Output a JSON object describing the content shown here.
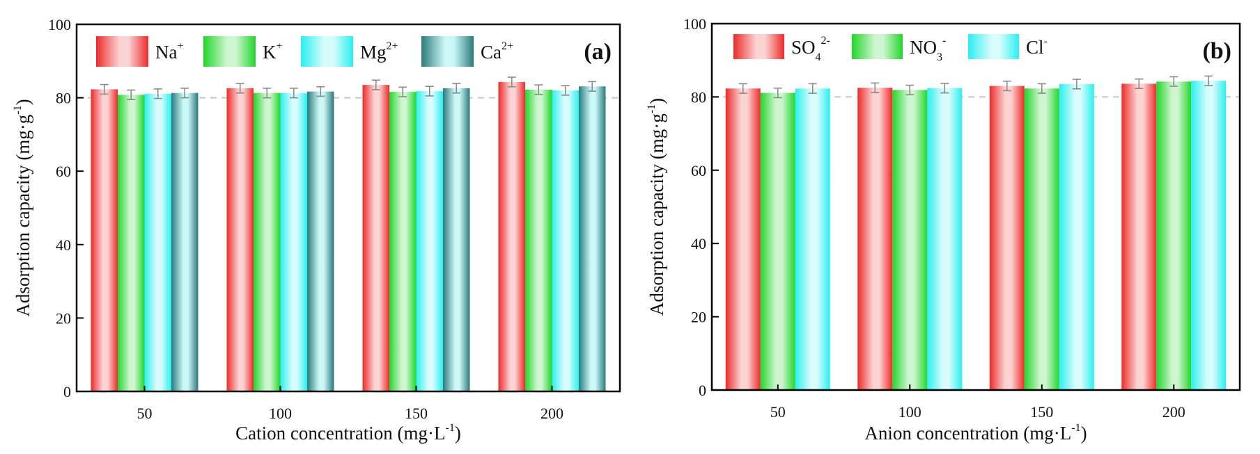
{
  "chart_data": [
    {
      "type": "bar",
      "panel_label": "(a)",
      "categories": [
        "50",
        "100",
        "150",
        "200"
      ],
      "xlabel": "Cation concentration (mg·L",
      "xlabel_sup": "-1",
      "xlabel_end": ")",
      "ylabel": "Adsorption capacity (mg·g",
      "ylabel_sup": "-1",
      "ylabel_end": ")",
      "ylim": [
        0,
        100
      ],
      "yticks": [
        0,
        20,
        40,
        60,
        80,
        100
      ],
      "reference_line": 80,
      "legend_position": "top",
      "series": [
        {
          "name": "Na",
          "sup": "+",
          "sub": "",
          "color_edge": "#ee2a2a",
          "color_mid": "#fbd3d3",
          "values": [
            82.3,
            82.6,
            83.5,
            84.3
          ],
          "errors": [
            1.3,
            1.3,
            1.3,
            1.3
          ]
        },
        {
          "name": "K",
          "sup": "+",
          "sub": "",
          "color_edge": "#22d62a",
          "color_mid": "#cdf5cf",
          "values": [
            80.8,
            81.3,
            81.6,
            82.2
          ],
          "errors": [
            1.3,
            1.3,
            1.3,
            1.3
          ]
        },
        {
          "name": "Mg",
          "sup": "2+",
          "sub": "",
          "color_edge": "#2af0f0",
          "color_mid": "#d8fbfb",
          "values": [
            81.1,
            81.3,
            81.8,
            82.0
          ],
          "errors": [
            1.3,
            1.3,
            1.3,
            1.3
          ]
        },
        {
          "name": "Ca",
          "sup": "2+",
          "sub": "",
          "color_edge": "#2a7a7c",
          "color_mid": "#ccf7f7",
          "values": [
            81.3,
            81.7,
            82.6,
            83.1
          ],
          "errors": [
            1.3,
            1.3,
            1.3,
            1.3
          ]
        }
      ]
    },
    {
      "type": "bar",
      "panel_label": "(b)",
      "categories": [
        "50",
        "100",
        "150",
        "200"
      ],
      "xlabel": "Anion concentration (mg·L",
      "xlabel_sup": "-1",
      "xlabel_end": ")",
      "ylabel": "Adsorption capacity (mg·g",
      "ylabel_sup": "-1",
      "ylabel_end": ")",
      "ylim": [
        0,
        100
      ],
      "yticks": [
        0,
        20,
        40,
        60,
        80,
        100
      ],
      "reference_line": 80,
      "legend_position": "top",
      "series": [
        {
          "name": "SO",
          "sup": "2-",
          "sub": "4",
          "color_edge": "#ee2a2a",
          "color_mid": "#fbd3d3",
          "values": [
            82.3,
            82.5,
            83.0,
            83.6
          ],
          "errors": [
            1.3,
            1.3,
            1.3,
            1.3
          ]
        },
        {
          "name": "NO",
          "sup": "-",
          "sub": "3",
          "color_edge": "#22d62a",
          "color_mid": "#cdf5cf",
          "values": [
            81.1,
            81.9,
            82.3,
            84.2
          ],
          "errors": [
            1.3,
            1.3,
            1.3,
            1.3
          ]
        },
        {
          "name": "Cl",
          "sup": "-",
          "sub": "",
          "color_edge": "#2af0f0",
          "color_mid": "#d8fbfb",
          "values": [
            82.3,
            82.4,
            83.5,
            84.4
          ],
          "errors": [
            1.3,
            1.3,
            1.3,
            1.3
          ]
        }
      ]
    }
  ]
}
